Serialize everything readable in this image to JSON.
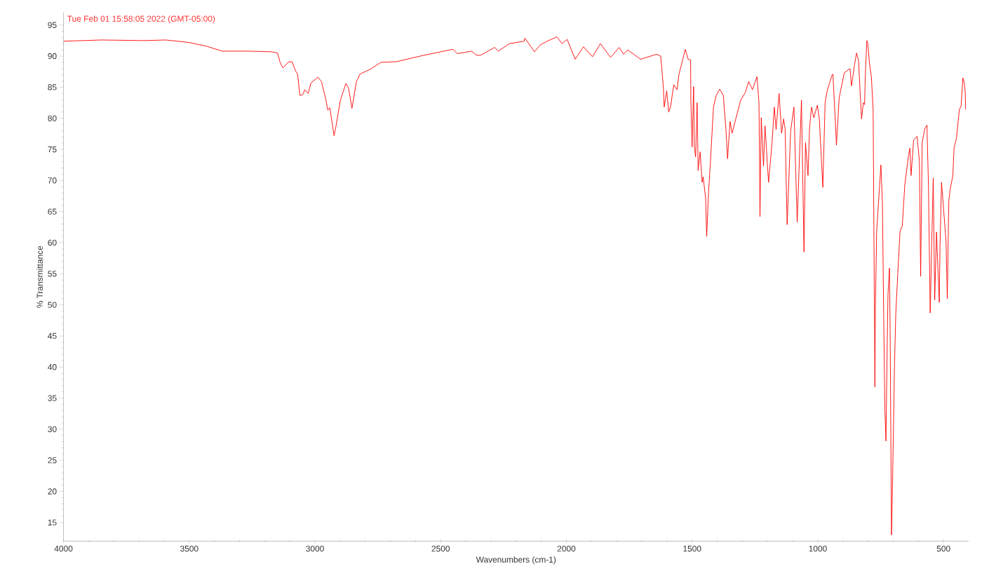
{
  "chart_data": {
    "type": "line",
    "xlabel": "Wavenumbers (cm-1)",
    "ylabel": "% Transmittance",
    "annotations": [
      "Tue Feb 01 15:58:05 2022 (GMT-05:00)"
    ],
    "xlim": [
      4000,
      400
    ],
    "ylim": [
      12,
      97
    ],
    "xticks": [
      4000,
      3500,
      3000,
      2500,
      2000,
      1500,
      1000,
      500
    ],
    "yticks": [
      15,
      20,
      25,
      30,
      35,
      40,
      45,
      50,
      55,
      60,
      65,
      70,
      75,
      80,
      85,
      90,
      95
    ],
    "x": [
      4000,
      3849,
      3682,
      3593,
      3502,
      3432,
      3368,
      3265,
      3174,
      3149,
      3138,
      3127,
      3104,
      3091,
      3077,
      3069,
      3060,
      3049,
      3040,
      3027,
      3016,
      2988,
      2974,
      2957,
      2949,
      2941,
      2924,
      2916,
      2899,
      2877,
      2866,
      2853,
      2835,
      2821,
      2775,
      2738,
      2677,
      2571,
      2451,
      2434,
      2376,
      2360,
      2343,
      2285,
      2271,
      2227,
      2168,
      2165,
      2127,
      2104,
      2071,
      2038,
      2017,
      1997,
      1965,
      1932,
      1896,
      1865,
      1824,
      1790,
      1772,
      1756,
      1705,
      1641,
      1625,
      1620,
      1614,
      1611,
      1601,
      1593,
      1585,
      1573,
      1560,
      1552,
      1527,
      1516,
      1506,
      1505,
      1500,
      1494,
      1491,
      1486,
      1480,
      1476,
      1468,
      1460,
      1456,
      1446,
      1442,
      1435,
      1427,
      1415,
      1404,
      1390,
      1376,
      1365,
      1359,
      1349,
      1341,
      1307,
      1288,
      1275,
      1260,
      1242,
      1234,
      1230,
      1225,
      1216,
      1210,
      1196,
      1182,
      1173,
      1166,
      1154,
      1144,
      1136,
      1130,
      1122,
      1108,
      1095,
      1089,
      1082,
      1065,
      1055,
      1049,
      1039,
      1033,
      1025,
      1016,
      1002,
      994,
      980,
      971,
      963,
      944,
      940,
      929,
      926,
      915,
      895,
      872,
      866,
      854,
      846,
      838,
      832,
      826,
      819,
      814,
      811,
      805,
      801,
      795,
      787,
      780,
      777,
      773,
      771,
      766,
      749,
      743,
      738,
      733,
      729,
      724,
      721,
      715,
      712,
      707,
      703,
      695,
      690,
      682,
      673,
      664,
      654,
      640,
      634,
      629,
      619,
      605,
      596,
      591,
      585,
      574,
      566,
      560,
      553,
      541,
      535,
      528,
      517,
      514,
      508,
      490,
      485,
      479,
      474,
      463,
      458,
      449,
      437,
      430,
      423,
      418,
      414,
      412
    ],
    "series": [
      {
        "color": "#ff0000",
        "values": [
          92.4,
          92.6,
          92.5,
          92.6,
          92.2,
          91.6,
          90.8,
          90.8,
          90.7,
          90.5,
          88.9,
          88.1,
          89.1,
          89.1,
          87.6,
          87.1,
          83.7,
          83.8,
          84.6,
          84.0,
          85.7,
          86.6,
          85.9,
          83.1,
          81.3,
          81.7,
          77.2,
          78.8,
          82.9,
          85.6,
          84.8,
          81.6,
          85.9,
          87.1,
          88.0,
          89.0,
          89.1,
          90.1,
          91.1,
          90.4,
          90.8,
          90.2,
          90.1,
          91.4,
          90.8,
          92.0,
          92.4,
          92.9,
          90.7,
          91.8,
          92.5,
          93.1,
          92.0,
          92.7,
          89.5,
          91.5,
          89.9,
          92.0,
          89.8,
          91.4,
          90.3,
          91.0,
          89.5,
          90.3,
          90.0,
          87.8,
          84.8,
          81.8,
          84.4,
          81.0,
          82.0,
          85.4,
          84.6,
          87.1,
          91.1,
          89.5,
          89.4,
          83.0,
          75.4,
          85.1,
          75.4,
          73.8,
          82.5,
          71.6,
          74.6,
          69.7,
          70.6,
          67.0,
          61.0,
          67.8,
          73.1,
          81.8,
          83.7,
          84.7,
          83.7,
          78.0,
          73.5,
          79.5,
          77.6,
          82.9,
          84.2,
          85.9,
          84.6,
          86.7,
          82.5,
          64.2,
          80.1,
          72.3,
          78.8,
          69.7,
          76.1,
          81.8,
          78.2,
          84.0,
          77.6,
          79.9,
          78.2,
          62.9,
          78.0,
          81.8,
          73.1,
          63.3,
          82.9,
          58.5,
          76.1,
          70.8,
          78.4,
          81.8,
          80.1,
          82.1,
          79.9,
          68.9,
          82.5,
          84.4,
          86.9,
          87.1,
          78.4,
          75.7,
          83.3,
          87.3,
          88.0,
          85.2,
          88.6,
          90.5,
          89.3,
          84.4,
          79.9,
          82.5,
          82.2,
          87.1,
          92.5,
          92.0,
          89.0,
          86.7,
          81.4,
          62.5,
          36.8,
          49.6,
          61.8,
          72.5,
          66.3,
          48.2,
          32.9,
          28.1,
          43.6,
          51.6,
          55.9,
          44.4,
          13.0,
          21.0,
          40.2,
          48.5,
          55.0,
          61.8,
          62.7,
          69.3,
          73.8,
          75.2,
          70.8,
          76.5,
          77.1,
          73.1,
          54.6,
          76.1,
          78.4,
          78.9,
          69.3,
          48.7,
          70.4,
          50.8,
          61.7,
          50.4,
          59.5,
          69.7,
          60.2,
          51.0,
          66.7,
          68.5,
          70.8,
          75.3,
          76.7,
          81.4,
          82.0,
          86.5,
          85.7,
          84.4,
          81.4
        ]
      }
    ]
  }
}
